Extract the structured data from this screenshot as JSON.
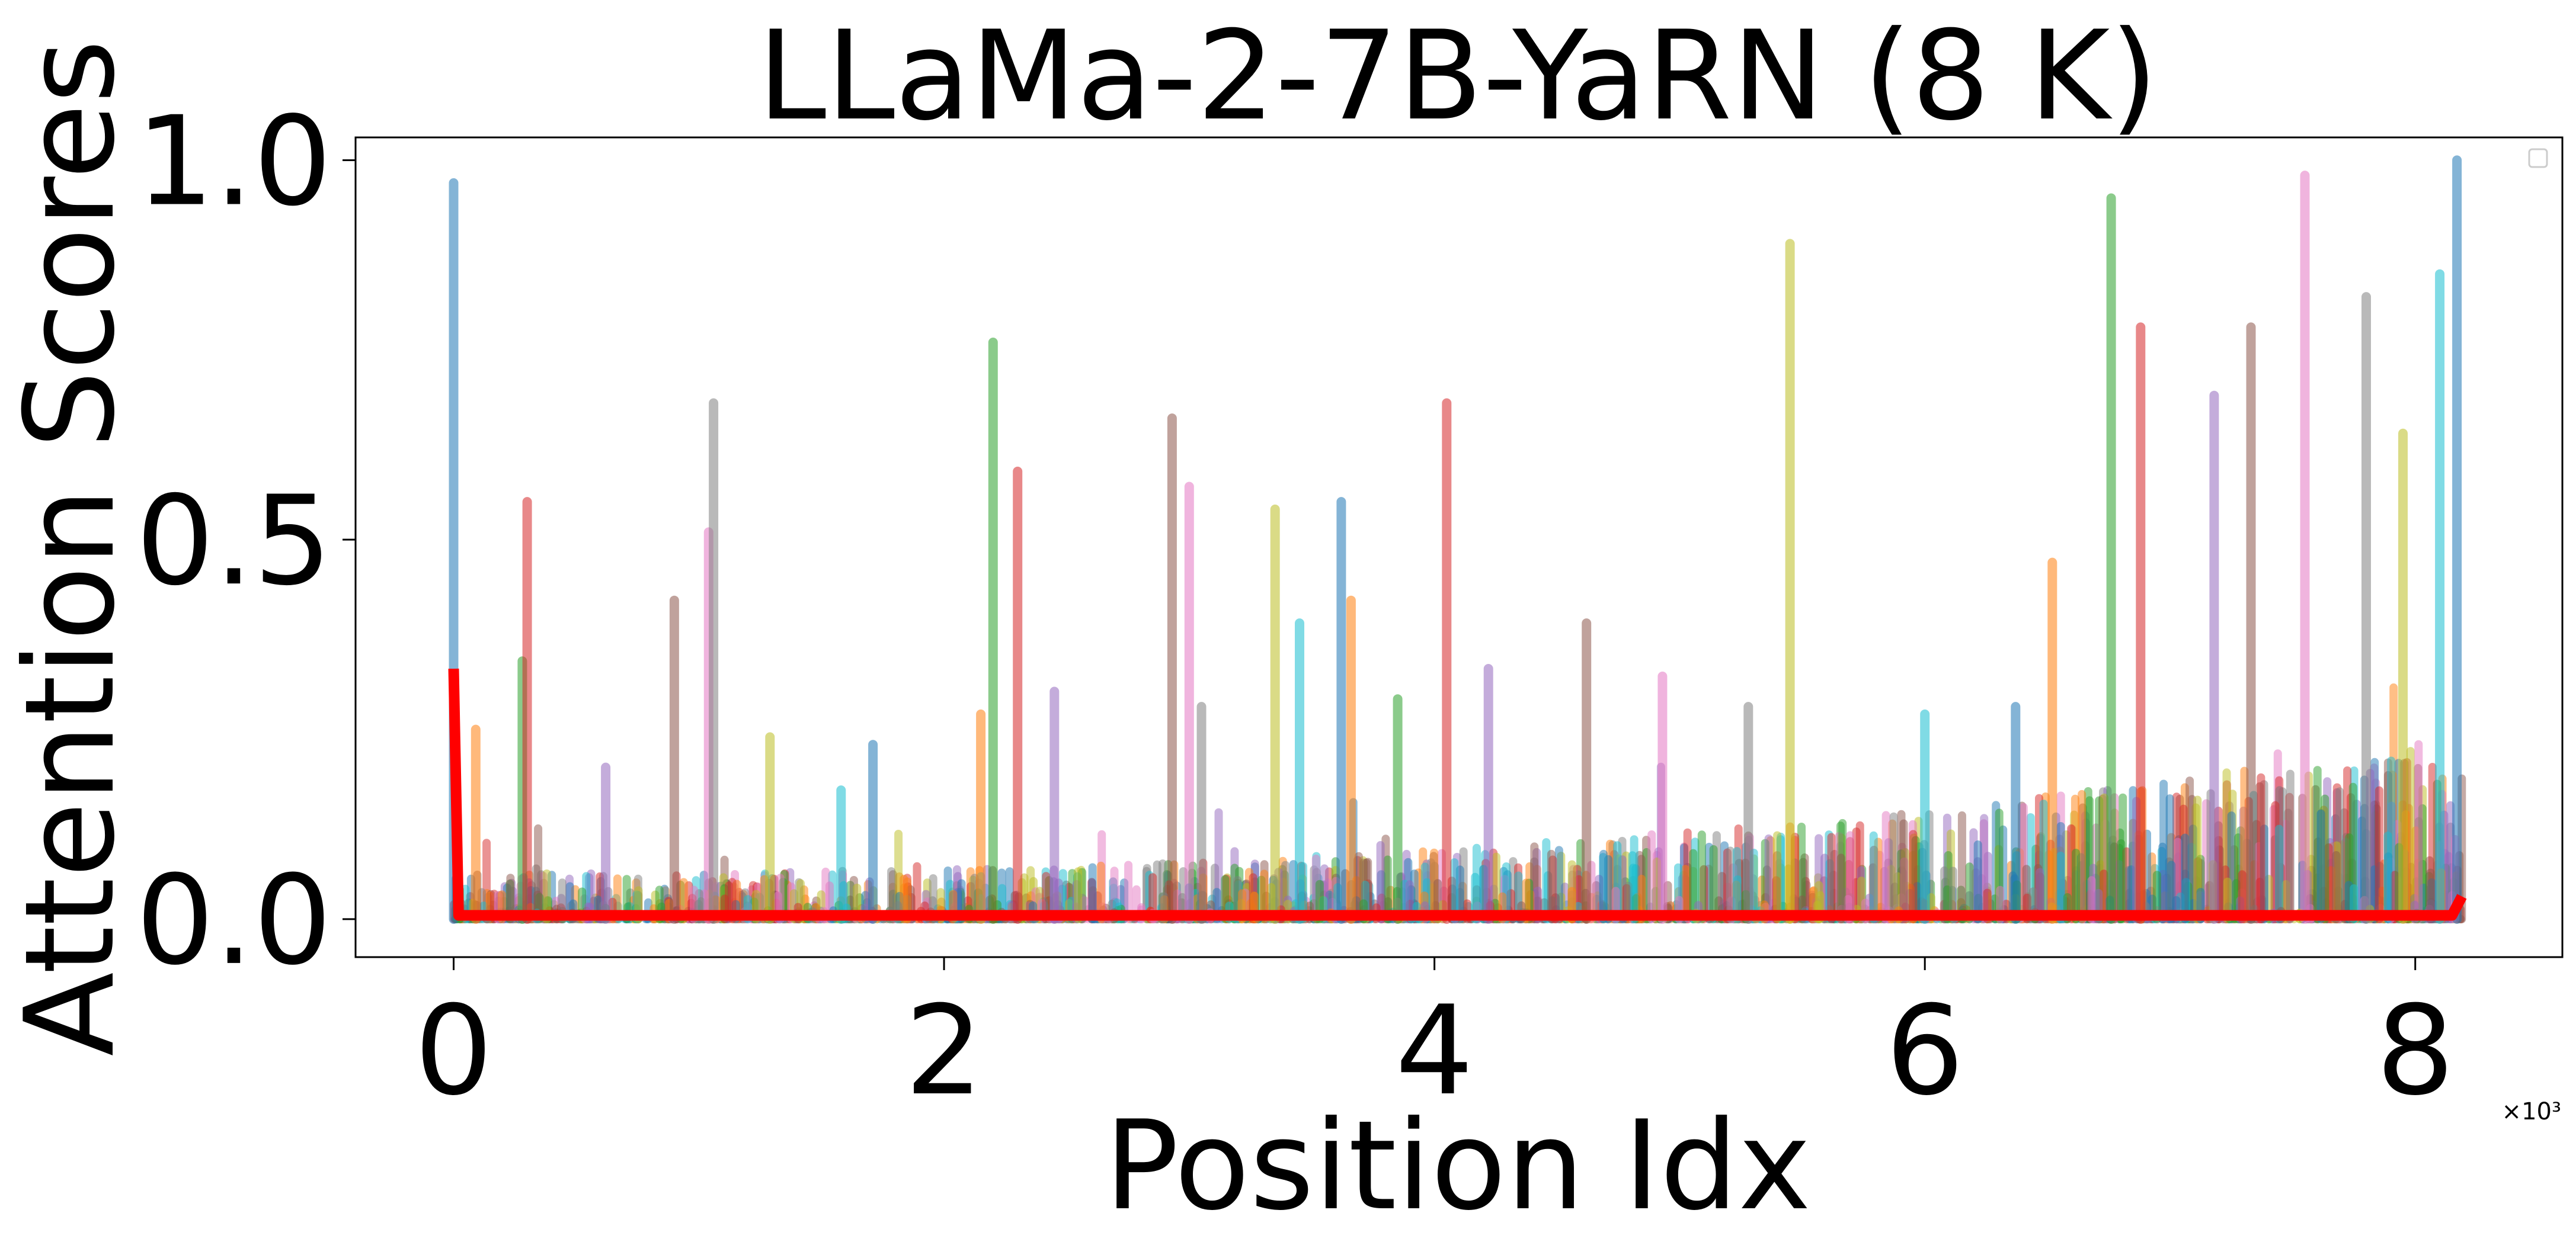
{
  "chart_data": {
    "type": "line",
    "title": "LLaMa-2-7B-YaRN (8 K)",
    "xlabel": "Position Idx",
    "ylabel": "Attention Scores",
    "x_exponent_label": "×10³",
    "xlim": [
      -0.4,
      8.6
    ],
    "ylim": [
      -0.05,
      1.03
    ],
    "xticks": [
      0,
      2,
      4,
      6,
      8
    ],
    "xtick_labels": [
      "0",
      "2",
      "4",
      "6",
      "8"
    ],
    "yticks": [
      0.0,
      0.5,
      1.0
    ],
    "ytick_labels": [
      "0.0",
      "0.5",
      "1.0"
    ],
    "grid": false,
    "legend": "top-right (empty)",
    "x_range_data": [
      0,
      8.19
    ],
    "palette": [
      "#1f77b4",
      "#ff7f0e",
      "#2ca02c",
      "#d62728",
      "#9467bd",
      "#8c564b",
      "#e377c2",
      "#7f7f7f",
      "#bcbd22",
      "#17becf"
    ],
    "highlight_series": {
      "color": "#ff0000",
      "points": [
        [
          0,
          0.33
        ],
        [
          0.02,
          0.005
        ],
        [
          8.15,
          0.005
        ],
        [
          8.19,
          0.03
        ]
      ]
    },
    "series": [
      {
        "x": [
          0,
          0.09,
          0.28,
          0.3,
          0.62,
          0.9,
          1.04,
          1.06,
          1.29,
          1.58,
          1.71,
          2.15,
          2.2,
          2.3,
          2.45,
          2.93,
          3.0,
          3.05,
          3.35,
          3.45,
          3.62,
          3.66,
          3.85,
          4.05,
          4.22,
          4.62,
          4.93,
          5.28,
          5.45,
          6.0,
          6.37,
          6.52,
          6.76,
          6.88,
          7.18,
          7.33,
          7.55,
          7.8,
          7.95,
          8.1,
          8.17
        ],
        "values": [
          0.97,
          0.25,
          0.34,
          0.55,
          0.2,
          0.42,
          0.51,
          0.68,
          0.24,
          0.17,
          0.23,
          0.27,
          0.76,
          0.59,
          0.3,
          0.66,
          0.57,
          0.28,
          0.54,
          0.39,
          0.55,
          0.42,
          0.29,
          0.68,
          0.33,
          0.39,
          0.32,
          0.28,
          0.89,
          0.27,
          0.28,
          0.47,
          0.95,
          0.78,
          0.69,
          0.78,
          0.98,
          0.82,
          0.64,
          0.85,
          1.0
        ]
      }
    ]
  }
}
